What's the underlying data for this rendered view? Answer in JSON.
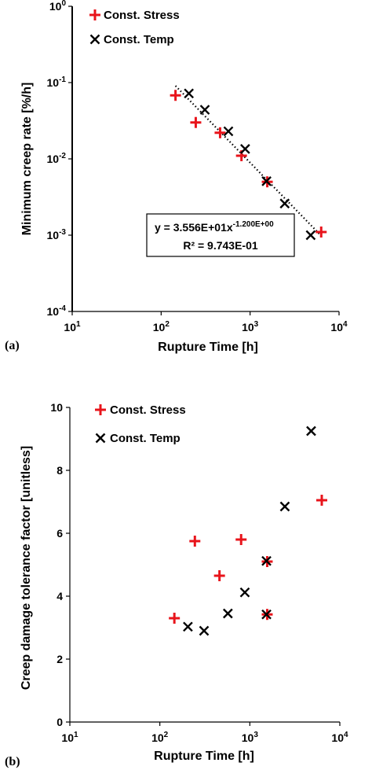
{
  "chart_data": [
    {
      "type": "scatter",
      "panel_label": "(a)",
      "xlabel": "Rupture Time [h]",
      "ylabel": "Minimum creep rate [%/h]",
      "x_scale": "log",
      "y_scale": "log",
      "xlim": [
        10,
        10000
      ],
      "ylim": [
        0.0001,
        1
      ],
      "x_ticks": [
        {
          "value": 10,
          "base": "10",
          "exp": "1"
        },
        {
          "value": 100,
          "base": "10",
          "exp": "2"
        },
        {
          "value": 1000,
          "base": "10",
          "exp": "3"
        },
        {
          "value": 10000,
          "base": "10",
          "exp": "4"
        }
      ],
      "y_ticks": [
        {
          "value": 0.0001,
          "base": "10",
          "exp": "-4"
        },
        {
          "value": 0.001,
          "base": "10",
          "exp": "-3"
        },
        {
          "value": 0.01,
          "base": "10",
          "exp": "-2"
        },
        {
          "value": 0.1,
          "base": "10",
          "exp": "-1"
        },
        {
          "value": 1,
          "base": "10",
          "exp": "0"
        }
      ],
      "grid": false,
      "legend_position": "top-left",
      "series": [
        {
          "name": "Const. Stress",
          "marker": "plus",
          "color": "#e8141b",
          "points": [
            {
              "x": 145,
              "y": 0.068
            },
            {
              "x": 245,
              "y": 0.03
            },
            {
              "x": 460,
              "y": 0.022
            },
            {
              "x": 800,
              "y": 0.011
            },
            {
              "x": 1560,
              "y": 0.005
            },
            {
              "x": 6300,
              "y": 0.0011
            }
          ]
        },
        {
          "name": "Const. Temp",
          "marker": "cross",
          "color": "#000000",
          "points": [
            {
              "x": 205,
              "y": 0.072
            },
            {
              "x": 310,
              "y": 0.044
            },
            {
              "x": 570,
              "y": 0.023
            },
            {
              "x": 880,
              "y": 0.0135
            },
            {
              "x": 1530,
              "y": 0.0051
            },
            {
              "x": 2450,
              "y": 0.0026
            },
            {
              "x": 4800,
              "y": 0.001
            }
          ]
        }
      ],
      "trendline": {
        "type": "power",
        "coefficient": 35.56,
        "exponent": -1.2,
        "x_range": [
          145,
          6300
        ],
        "style": "dotted",
        "equation_label": {
          "prefix": "y = 3.556E+01x",
          "superscript": "-1.200E+00",
          "r2": "R² = 9.743E-01"
        }
      }
    },
    {
      "type": "scatter",
      "panel_label": "(b)",
      "xlabel": "Rupture Time [h]",
      "ylabel": "Creep damage tolerance factor [unitless]",
      "x_scale": "log",
      "y_scale": "linear",
      "xlim": [
        10,
        10000
      ],
      "ylim": [
        0,
        10
      ],
      "x_ticks": [
        {
          "value": 10,
          "base": "10",
          "exp": "1"
        },
        {
          "value": 100,
          "base": "10",
          "exp": "2"
        },
        {
          "value": 1000,
          "base": "10",
          "exp": "3"
        },
        {
          "value": 10000,
          "base": "10",
          "exp": "4"
        }
      ],
      "y_ticks": [
        {
          "value": 0,
          "label": "0"
        },
        {
          "value": 2,
          "label": "2"
        },
        {
          "value": 4,
          "label": "4"
        },
        {
          "value": 6,
          "label": "6"
        },
        {
          "value": 8,
          "label": "8"
        },
        {
          "value": 10,
          "label": "10"
        }
      ],
      "grid": false,
      "legend_position": "top-left",
      "series": [
        {
          "name": "Const. Stress",
          "marker": "plus",
          "color": "#e8141b",
          "points": [
            {
              "x": 145,
              "y": 3.3
            },
            {
              "x": 245,
              "y": 5.75
            },
            {
              "x": 460,
              "y": 4.65
            },
            {
              "x": 800,
              "y": 5.8
            },
            {
              "x": 1560,
              "y": 5.1
            },
            {
              "x": 1560,
              "y": 3.42
            },
            {
              "x": 6300,
              "y": 7.05
            }
          ]
        },
        {
          "name": "Const. Temp",
          "marker": "cross",
          "color": "#000000",
          "points": [
            {
              "x": 205,
              "y": 3.03
            },
            {
              "x": 310,
              "y": 2.9
            },
            {
              "x": 570,
              "y": 3.45
            },
            {
              "x": 880,
              "y": 4.12
            },
            {
              "x": 1530,
              "y": 5.12
            },
            {
              "x": 1530,
              "y": 3.42
            },
            {
              "x": 2450,
              "y": 6.85
            },
            {
              "x": 4800,
              "y": 9.25
            }
          ]
        }
      ]
    }
  ]
}
